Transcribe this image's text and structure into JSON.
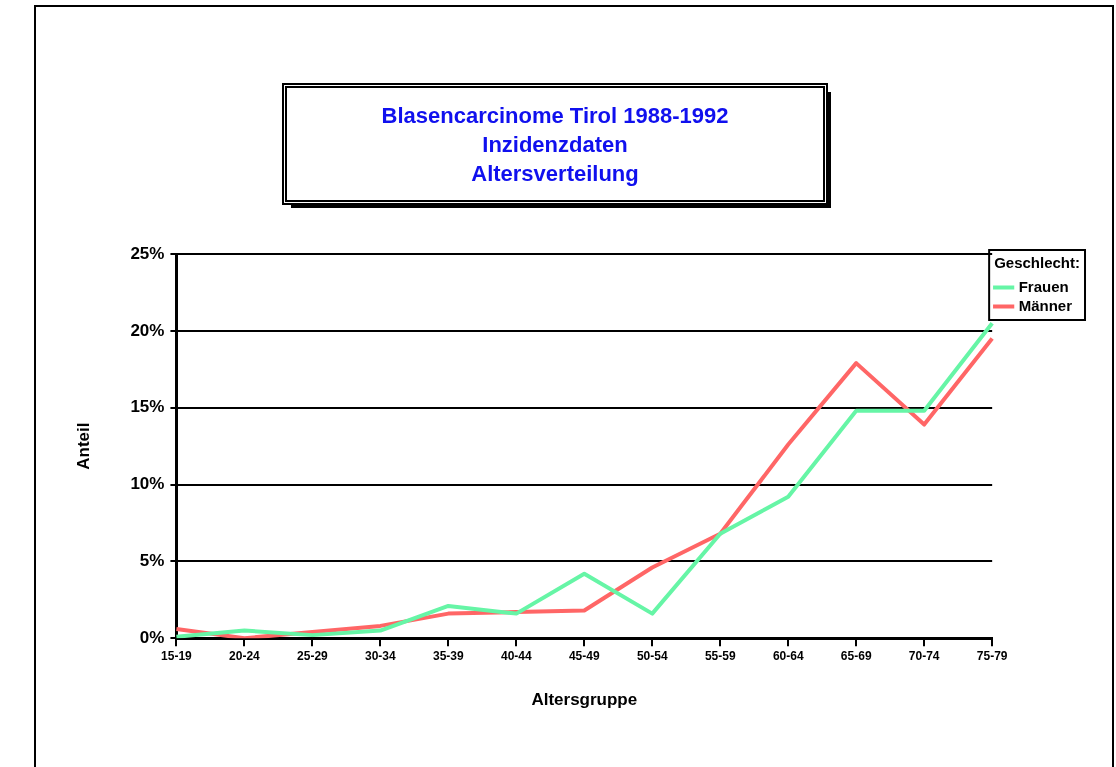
{
  "chart_data": {
    "type": "line",
    "title": "Blasencarcinome Tirol 1988-1992\nInzidenzdaten\nAltersverteilung",
    "xlabel": "Altersgruppe",
    "ylabel": "Anteil",
    "legend_title": "Geschlecht:",
    "categories": [
      "15-19",
      "20-24",
      "25-29",
      "30-34",
      "35-39",
      "40-44",
      "45-49",
      "50-54",
      "55-59",
      "60-64",
      "65-69",
      "70-74",
      "75-79"
    ],
    "series": [
      {
        "name": "Frauen",
        "color": "#66f5a6",
        "values": [
          0.1,
          0.5,
          0.2,
          0.5,
          2.1,
          1.6,
          4.2,
          1.6,
          6.8,
          9.2,
          14.8,
          14.8,
          20.5
        ]
      },
      {
        "name": "Männer",
        "color": "#ff6666",
        "values": [
          0.6,
          0,
          0.4,
          0.8,
          1.6,
          1.7,
          1.8,
          4.6,
          6.8,
          12.6,
          17.9,
          13.9,
          19.5
        ]
      }
    ],
    "ylim": [
      0,
      25
    ],
    "yticks": [
      {
        "value": 0,
        "label": "0%"
      },
      {
        "value": 5,
        "label": "5%"
      },
      {
        "value": 10,
        "label": "10%"
      },
      {
        "value": 15,
        "label": "15%"
      },
      {
        "value": 20,
        "label": "20%"
      },
      {
        "value": 25,
        "label": "25%"
      }
    ],
    "grid": "y",
    "legend": "top right",
    "marker": "none",
    "line_style": "solid"
  }
}
